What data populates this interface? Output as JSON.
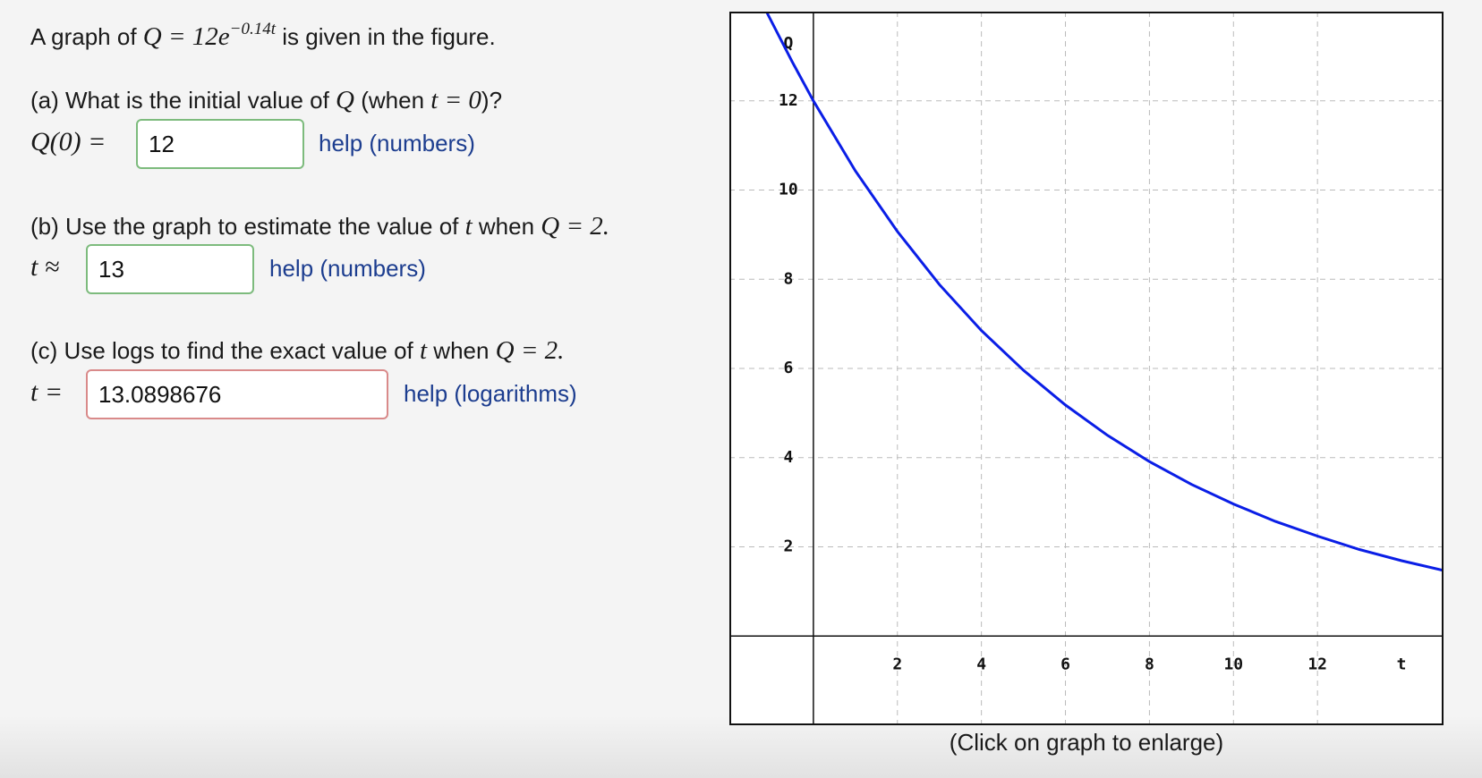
{
  "problem": {
    "segments": [
      {
        "text": "A graph of "
      },
      {
        "text": "Q = 12e",
        "math": true
      },
      {
        "text": "−0.14t",
        "math": true,
        "sup": true
      },
      {
        "text": " is given in the figure."
      }
    ]
  },
  "parts": [
    {
      "question": [
        {
          "text": "(a) What is the initial value of "
        },
        {
          "text": "Q",
          "math": true
        },
        {
          "text": " (when "
        },
        {
          "text": "t = 0",
          "math": true
        },
        {
          "text": ")?"
        }
      ],
      "prompt": "Q(0) =",
      "answer": "12",
      "border_color": "#7dbb7d",
      "help": "help (numbers)"
    },
    {
      "question": [
        {
          "text": "(b) Use the graph to estimate the value of "
        },
        {
          "text": "t",
          "math": true
        },
        {
          "text": " when "
        },
        {
          "text": "Q = 2.",
          "math": true
        }
      ],
      "prompt": "t ≈",
      "answer": "13",
      "border_color": "#7dbb7d",
      "help": "help (numbers)"
    },
    {
      "question": [
        {
          "text": "(c) Use logs to find the exact value of "
        },
        {
          "text": "t",
          "math": true
        },
        {
          "text": " when "
        },
        {
          "text": "Q = 2.",
          "math": true
        }
      ],
      "prompt": "t =",
      "answer": "13.0898676",
      "border_color": "#d98a8a",
      "help": "help (logarithms)"
    }
  ],
  "chart_data": {
    "type": "line",
    "x_label": "t",
    "y_label": "Q",
    "x": [
      -1.1,
      -0.5,
      0,
      1,
      2,
      3,
      4,
      5,
      6,
      7,
      8,
      9,
      10,
      11,
      12,
      13,
      14,
      15
    ],
    "series": [
      {
        "color": "#0a1ee6",
        "values": [
          13.97,
          12.87,
          12,
          10.43,
          9.07,
          7.88,
          6.85,
          5.96,
          5.18,
          4.5,
          3.91,
          3.4,
          2.96,
          2.57,
          2.24,
          1.94,
          1.69,
          1.47
        ]
      }
    ],
    "xlim": [
      -2,
      15
    ],
    "ylim": [
      -2,
      14
    ],
    "xticks": [
      2,
      4,
      6,
      8,
      10,
      12
    ],
    "yticks": [
      2,
      4,
      6,
      8,
      10,
      12
    ],
    "grid": true
  },
  "caption": "(Click on graph to enlarge)"
}
